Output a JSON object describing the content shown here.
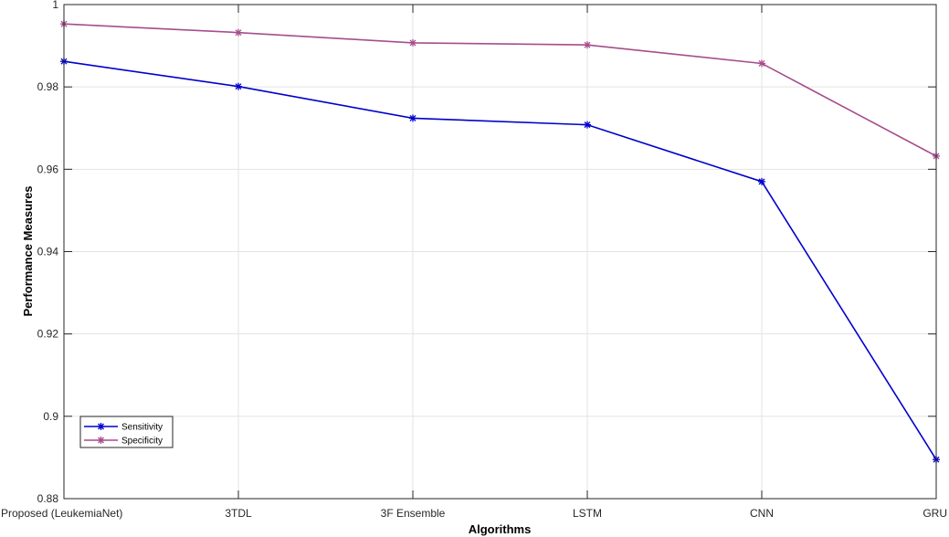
{
  "chart_data": {
    "type": "line",
    "title": "",
    "xlabel": "Algorithms",
    "ylabel": "Performance Measures",
    "categories": [
      "Proposed (LeukemiaNet)",
      "3TDL",
      "3F Ensemble",
      "LSTM",
      "CNN",
      "GRU"
    ],
    "ylim": [
      0.88,
      1.0
    ],
    "yticks": [
      "0.88",
      "0.9",
      "0.92",
      "0.94",
      "0.96",
      "0.98",
      "1"
    ],
    "grid": true,
    "legend_position": "bottom-left",
    "series": [
      {
        "name": "Sensitivity",
        "color": "#0000CC",
        "values": [
          0.9862,
          0.9801,
          0.9724,
          0.9708,
          0.957,
          0.8895
        ]
      },
      {
        "name": "Specificity",
        "color": "#A64D8C",
        "values": [
          0.9953,
          0.9932,
          0.9907,
          0.9902,
          0.9857,
          0.9632
        ]
      }
    ]
  }
}
